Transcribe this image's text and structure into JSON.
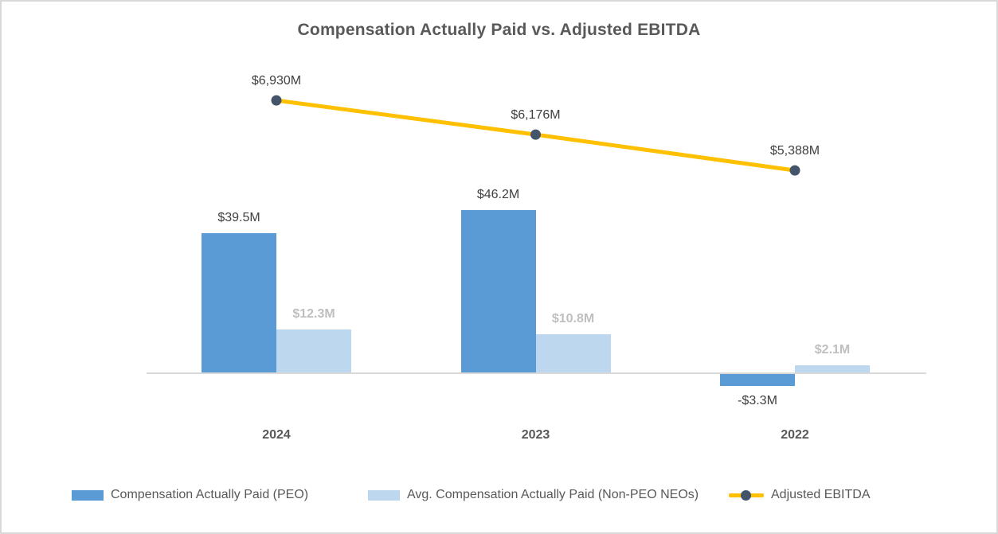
{
  "title": "Compensation Actually Paid vs. Adjusted EBITDA",
  "colors": {
    "peo_bar": "#5B9BD5",
    "nonpeo_bar": "#BDD7EE",
    "ebitda_line": "#FFC000",
    "ebitda_marker": "#44546A",
    "title_text": "#595959",
    "dark_label": "#404040",
    "muted_label": "#BFBFBF",
    "axis_line": "#D9D9D9",
    "border": "#D9D9D9"
  },
  "chart_data": {
    "type": "combo-bar-line",
    "title": "Compensation Actually Paid vs. Adjusted EBITDA",
    "categories": [
      "2024",
      "2023",
      "2022"
    ],
    "series": [
      {
        "name": "Compensation Actually Paid (PEO)",
        "type": "bar",
        "axis": "primary",
        "values": [
          39.5,
          46.2,
          -3.3
        ],
        "labels": [
          "$39.5M",
          "$46.2M",
          "-$3.3M"
        ],
        "color": "#5B9BD5",
        "label_style": "dark"
      },
      {
        "name": "Avg. Compensation Actually Paid (Non-PEO NEOs)",
        "type": "bar",
        "axis": "primary",
        "values": [
          12.3,
          10.8,
          2.1
        ],
        "labels": [
          "$12.3M",
          "$10.8M",
          "$2.1M"
        ],
        "color": "#BDD7EE",
        "label_style": "muted"
      },
      {
        "name": "Adjusted EBITDA",
        "type": "line",
        "axis": "secondary",
        "values": [
          6930,
          6176,
          5388
        ],
        "labels": [
          "$6,930M",
          "$6,176M",
          "$5,388M"
        ],
        "color": "#FFC000",
        "marker_color": "#44546A",
        "label_style": "dark"
      }
    ],
    "xlabel": "",
    "ylabel": "",
    "gridlines": false,
    "y_axis_labels_visible": false,
    "legend_position": "bottom"
  }
}
